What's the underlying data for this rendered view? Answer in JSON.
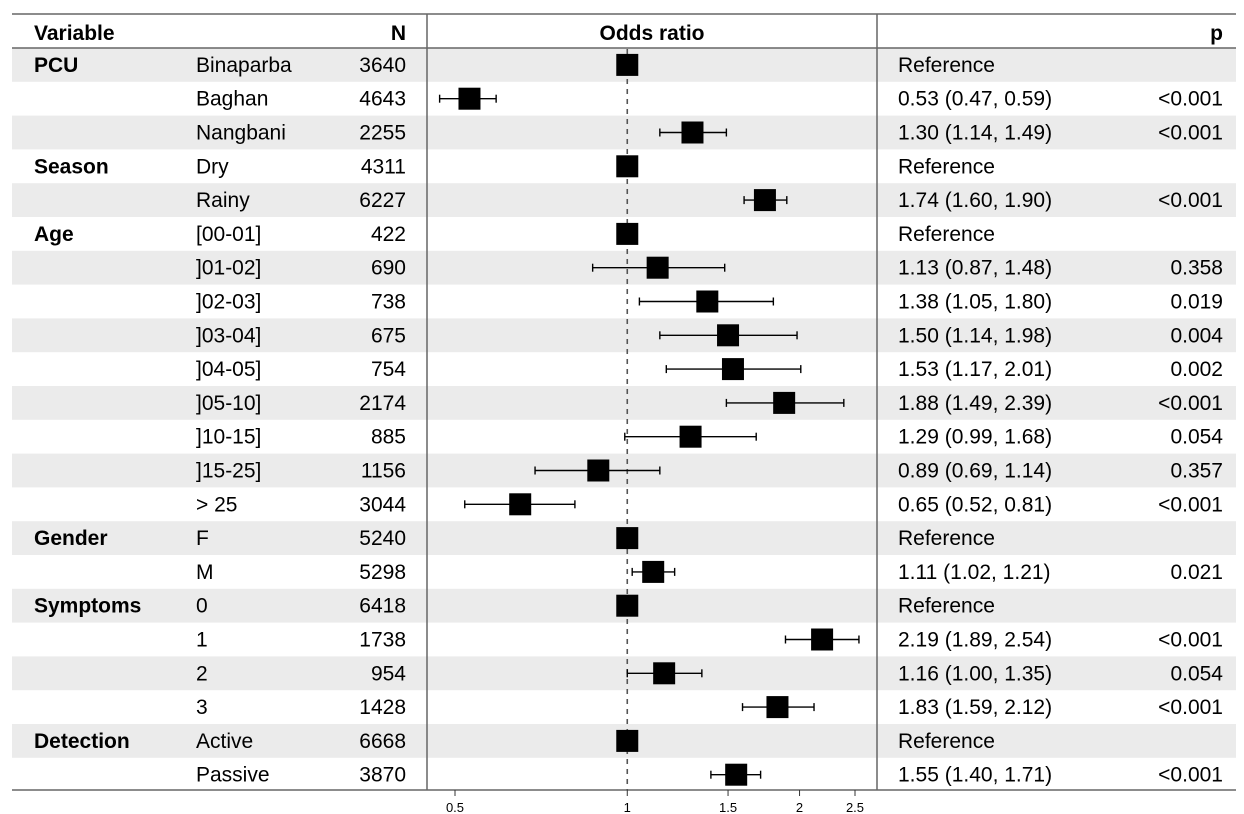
{
  "headers": {
    "variable": "Variable",
    "n": "N",
    "odds_ratio": "Odds ratio",
    "p": "p"
  },
  "colors": {
    "band": "#ebebeb",
    "marker": "#000000",
    "line": "#555555"
  },
  "axis": {
    "type": "log",
    "ticks": [
      0.5,
      1,
      1.5,
      2,
      2.5
    ],
    "tick_labels": [
      "0.5",
      "1",
      "1.5",
      "2",
      "2.5"
    ],
    "reference_line": 1
  },
  "rows": [
    {
      "group": "PCU",
      "level": "Binaparba",
      "n": "3640",
      "or": 1,
      "lo": null,
      "hi": null,
      "ci_text": "Reference",
      "p": ""
    },
    {
      "group": "",
      "level": "Baghan",
      "n": "4643",
      "or": 0.53,
      "lo": 0.47,
      "hi": 0.59,
      "ci_text": "0.53 (0.47, 0.59)",
      "p": "<0.001"
    },
    {
      "group": "",
      "level": "Nangbani",
      "n": "2255",
      "or": 1.3,
      "lo": 1.14,
      "hi": 1.49,
      "ci_text": "1.30 (1.14, 1.49)",
      "p": "<0.001"
    },
    {
      "group": "Season",
      "level": "Dry",
      "n": "4311",
      "or": 1,
      "lo": null,
      "hi": null,
      "ci_text": "Reference",
      "p": ""
    },
    {
      "group": "",
      "level": "Rainy",
      "n": "6227",
      "or": 1.74,
      "lo": 1.6,
      "hi": 1.9,
      "ci_text": "1.74 (1.60, 1.90)",
      "p": "<0.001"
    },
    {
      "group": "Age",
      "level": "[00-01]",
      "n": "422",
      "or": 1,
      "lo": null,
      "hi": null,
      "ci_text": "Reference",
      "p": ""
    },
    {
      "group": "",
      "level": "]01-02]",
      "n": "690",
      "or": 1.13,
      "lo": 0.87,
      "hi": 1.48,
      "ci_text": "1.13 (0.87, 1.48)",
      "p": "0.358"
    },
    {
      "group": "",
      "level": "]02-03]",
      "n": "738",
      "or": 1.38,
      "lo": 1.05,
      "hi": 1.8,
      "ci_text": "1.38 (1.05, 1.80)",
      "p": "0.019"
    },
    {
      "group": "",
      "level": "]03-04]",
      "n": "675",
      "or": 1.5,
      "lo": 1.14,
      "hi": 1.98,
      "ci_text": "1.50 (1.14, 1.98)",
      "p": "0.004"
    },
    {
      "group": "",
      "level": "]04-05]",
      "n": "754",
      "or": 1.53,
      "lo": 1.17,
      "hi": 2.01,
      "ci_text": "1.53 (1.17, 2.01)",
      "p": "0.002"
    },
    {
      "group": "",
      "level": "]05-10]",
      "n": "2174",
      "or": 1.88,
      "lo": 1.49,
      "hi": 2.39,
      "ci_text": "1.88 (1.49, 2.39)",
      "p": "<0.001"
    },
    {
      "group": "",
      "level": "]10-15]",
      "n": "885",
      "or": 1.29,
      "lo": 0.99,
      "hi": 1.68,
      "ci_text": "1.29 (0.99, 1.68)",
      "p": "0.054"
    },
    {
      "group": "",
      "level": "]15-25]",
      "n": "1156",
      "or": 0.89,
      "lo": 0.69,
      "hi": 1.14,
      "ci_text": "0.89 (0.69, 1.14)",
      "p": "0.357"
    },
    {
      "group": "",
      "level": "> 25",
      "n": "3044",
      "or": 0.65,
      "lo": 0.52,
      "hi": 0.81,
      "ci_text": "0.65 (0.52, 0.81)",
      "p": "<0.001"
    },
    {
      "group": "Gender",
      "level": "F",
      "n": "5240",
      "or": 1,
      "lo": null,
      "hi": null,
      "ci_text": "Reference",
      "p": ""
    },
    {
      "group": "",
      "level": "M",
      "n": "5298",
      "or": 1.11,
      "lo": 1.02,
      "hi": 1.21,
      "ci_text": "1.11 (1.02, 1.21)",
      "p": "0.021"
    },
    {
      "group": "Symptoms",
      "level": "0",
      "n": "6418",
      "or": 1,
      "lo": null,
      "hi": null,
      "ci_text": "Reference",
      "p": ""
    },
    {
      "group": "",
      "level": "1",
      "n": "1738",
      "or": 2.19,
      "lo": 1.89,
      "hi": 2.54,
      "ci_text": "2.19 (1.89, 2.54)",
      "p": "<0.001"
    },
    {
      "group": "",
      "level": "2",
      "n": "954",
      "or": 1.16,
      "lo": 1.0,
      "hi": 1.35,
      "ci_text": "1.16 (1.00, 1.35)",
      "p": "0.054"
    },
    {
      "group": "",
      "level": "3",
      "n": "1428",
      "or": 1.83,
      "lo": 1.59,
      "hi": 2.12,
      "ci_text": "1.83 (1.59, 2.12)",
      "p": "<0.001"
    },
    {
      "group": "Detection",
      "level": "Active",
      "n": "6668",
      "or": 1,
      "lo": null,
      "hi": null,
      "ci_text": "Reference",
      "p": ""
    },
    {
      "group": "",
      "level": "Passive",
      "n": "3870",
      "or": 1.55,
      "lo": 1.4,
      "hi": 1.71,
      "ci_text": "1.55 (1.40, 1.71)",
      "p": "<0.001"
    }
  ],
  "chart_data": {
    "type": "forest",
    "title": "",
    "xlabel": "Odds ratio",
    "xscale": "log",
    "xticks": [
      0.5,
      1,
      1.5,
      2,
      2.5
    ],
    "reference": 1,
    "points": [
      {
        "label": "PCU Binaparba",
        "or": 1
      },
      {
        "label": "PCU Baghan",
        "or": 0.53,
        "ci": [
          0.47,
          0.59
        ]
      },
      {
        "label": "PCU Nangbani",
        "or": 1.3,
        "ci": [
          1.14,
          1.49
        ]
      },
      {
        "label": "Season Dry",
        "or": 1
      },
      {
        "label": "Season Rainy",
        "or": 1.74,
        "ci": [
          1.6,
          1.9
        ]
      },
      {
        "label": "Age [00-01]",
        "or": 1
      },
      {
        "label": "Age ]01-02]",
        "or": 1.13,
        "ci": [
          0.87,
          1.48
        ]
      },
      {
        "label": "Age ]02-03]",
        "or": 1.38,
        "ci": [
          1.05,
          1.8
        ]
      },
      {
        "label": "Age ]03-04]",
        "or": 1.5,
        "ci": [
          1.14,
          1.98
        ]
      },
      {
        "label": "Age ]04-05]",
        "or": 1.53,
        "ci": [
          1.17,
          2.01
        ]
      },
      {
        "label": "Age ]05-10]",
        "or": 1.88,
        "ci": [
          1.49,
          2.39
        ]
      },
      {
        "label": "Age ]10-15]",
        "or": 1.29,
        "ci": [
          0.99,
          1.68
        ]
      },
      {
        "label": "Age ]15-25]",
        "or": 0.89,
        "ci": [
          0.69,
          1.14
        ]
      },
      {
        "label": "Age > 25",
        "or": 0.65,
        "ci": [
          0.52,
          0.81
        ]
      },
      {
        "label": "Gender F",
        "or": 1
      },
      {
        "label": "Gender M",
        "or": 1.11,
        "ci": [
          1.02,
          1.21
        ]
      },
      {
        "label": "Symptoms 0",
        "or": 1
      },
      {
        "label": "Symptoms 1",
        "or": 2.19,
        "ci": [
          1.89,
          2.54
        ]
      },
      {
        "label": "Symptoms 2",
        "or": 1.16,
        "ci": [
          1.0,
          1.35
        ]
      },
      {
        "label": "Symptoms 3",
        "or": 1.83,
        "ci": [
          1.59,
          2.12
        ]
      },
      {
        "label": "Detection Active",
        "or": 1
      },
      {
        "label": "Detection Passive",
        "or": 1.55,
        "ci": [
          1.4,
          1.71
        ]
      }
    ]
  }
}
